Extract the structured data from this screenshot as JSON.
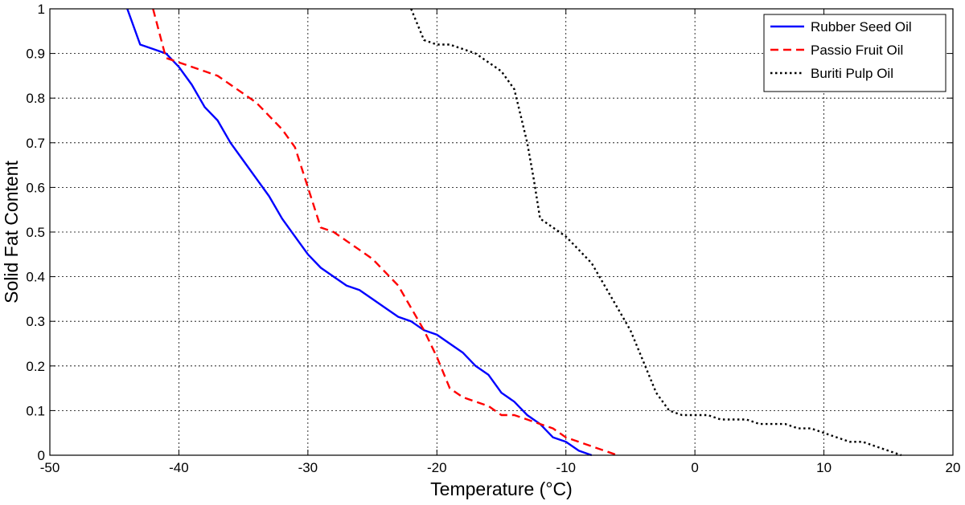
{
  "chart_data": {
    "type": "line",
    "title": "",
    "xlabel": "Temperature (°C)",
    "ylabel": "Solid Fat Content",
    "xlim": [
      -50,
      20
    ],
    "ylim": [
      0,
      1
    ],
    "xticks": [
      -50,
      -40,
      -30,
      -20,
      -10,
      0,
      10,
      20
    ],
    "yticks": [
      0,
      0.1,
      0.2,
      0.3,
      0.4,
      0.5,
      0.6,
      0.7,
      0.8,
      0.9,
      1
    ],
    "grid": true,
    "legend_position": "top-right",
    "series": [
      {
        "name": "Rubber Seed Oil",
        "color": "#0000ff",
        "style": "solid",
        "x": [
          -44,
          -43,
          -42,
          -41,
          -40,
          -39,
          -38,
          -37,
          -36,
          -35,
          -34,
          -33,
          -32,
          -31,
          -30,
          -29,
          -28,
          -27,
          -26,
          -25,
          -24,
          -23,
          -22,
          -21,
          -20,
          -19,
          -18,
          -17,
          -16,
          -15,
          -14,
          -13,
          -12,
          -11,
          -10,
          -9,
          -8
        ],
        "y": [
          1.0,
          0.92,
          0.91,
          0.9,
          0.87,
          0.83,
          0.78,
          0.75,
          0.7,
          0.66,
          0.62,
          0.58,
          0.53,
          0.49,
          0.45,
          0.42,
          0.4,
          0.38,
          0.37,
          0.35,
          0.33,
          0.31,
          0.3,
          0.28,
          0.27,
          0.25,
          0.23,
          0.2,
          0.18,
          0.14,
          0.12,
          0.09,
          0.07,
          0.04,
          0.03,
          0.01,
          0.0
        ]
      },
      {
        "name": "Passio Fruit Oil",
        "color": "#ff0000",
        "style": "dashed",
        "x": [
          -42,
          -41,
          -40,
          -39,
          -38,
          -37,
          -36,
          -35,
          -34,
          -33,
          -32,
          -31,
          -30,
          -29,
          -28,
          -27,
          -26,
          -25,
          -24,
          -23,
          -22,
          -21,
          -20,
          -19,
          -18,
          -17,
          -16,
          -15,
          -14,
          -13,
          -12,
          -11,
          -10,
          -9,
          -8,
          -7,
          -6
        ],
        "y": [
          1.0,
          0.89,
          0.88,
          0.87,
          0.86,
          0.85,
          0.83,
          0.81,
          0.79,
          0.76,
          0.73,
          0.69,
          0.6,
          0.51,
          0.5,
          0.48,
          0.46,
          0.44,
          0.41,
          0.38,
          0.33,
          0.28,
          0.22,
          0.15,
          0.13,
          0.12,
          0.11,
          0.09,
          0.09,
          0.08,
          0.07,
          0.06,
          0.04,
          0.03,
          0.02,
          0.01,
          0.0
        ]
      },
      {
        "name": "Buriti Pulp Oil",
        "color": "#000000",
        "style": "dotted",
        "x": [
          -22,
          -21,
          -20,
          -19,
          -18,
          -17,
          -16,
          -15,
          -14,
          -13.5,
          -13,
          -12.5,
          -12,
          -11,
          -10,
          -9,
          -8,
          -7,
          -6,
          -5,
          -4,
          -3,
          -2,
          -1,
          0,
          1,
          2,
          3,
          4,
          5,
          6,
          7,
          8,
          9,
          10,
          11,
          12,
          13,
          14,
          15,
          16
        ],
        "y": [
          1.0,
          0.93,
          0.92,
          0.92,
          0.91,
          0.9,
          0.88,
          0.86,
          0.82,
          0.76,
          0.7,
          0.62,
          0.53,
          0.51,
          0.49,
          0.46,
          0.43,
          0.38,
          0.33,
          0.28,
          0.21,
          0.14,
          0.1,
          0.09,
          0.09,
          0.09,
          0.08,
          0.08,
          0.08,
          0.07,
          0.07,
          0.07,
          0.06,
          0.06,
          0.05,
          0.04,
          0.03,
          0.03,
          0.02,
          0.01,
          0.0
        ]
      }
    ]
  }
}
